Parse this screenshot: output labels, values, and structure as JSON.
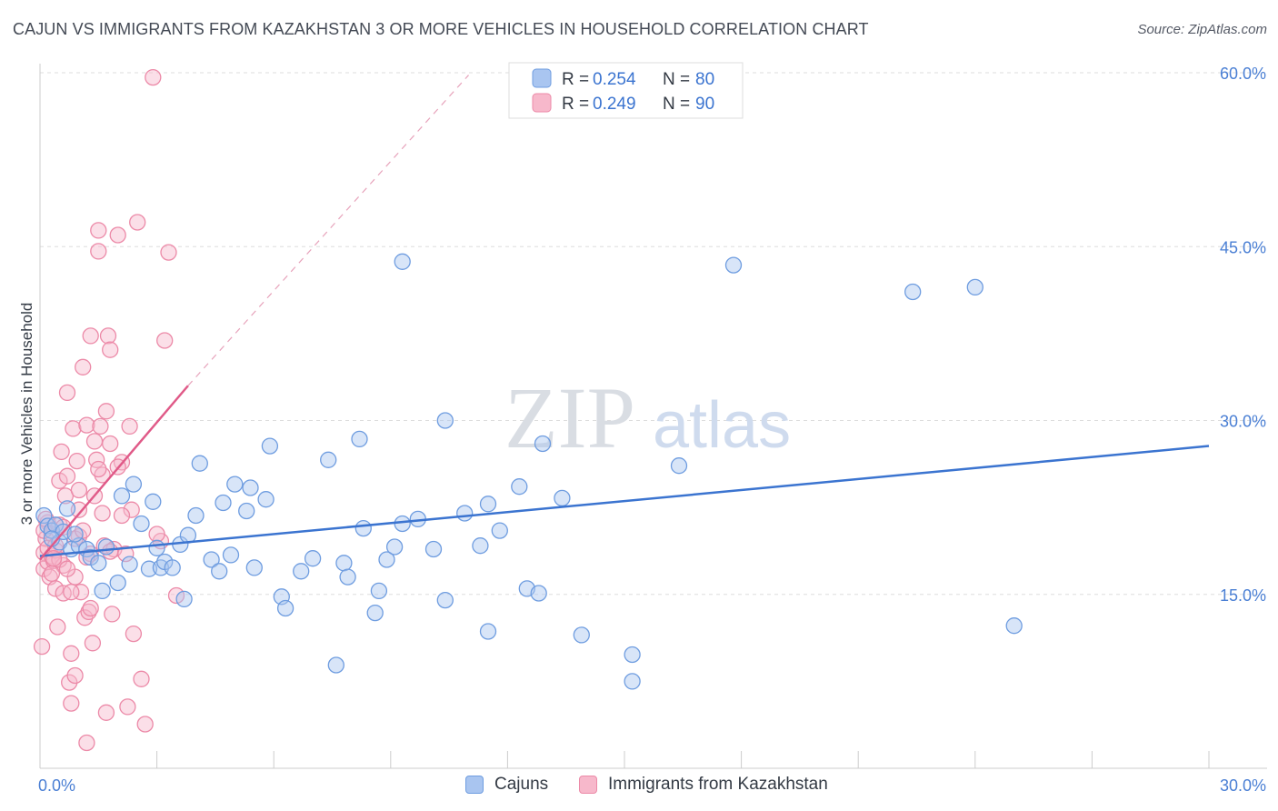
{
  "title": "CAJUN VS IMMIGRANTS FROM KAZAKHSTAN 3 OR MORE VEHICLES IN HOUSEHOLD CORRELATION CHART",
  "source": "Source: ZipAtlas.com",
  "watermark": {
    "zip": "ZIP",
    "atlas": "atlas"
  },
  "legend": {
    "r_label": "R =",
    "n_label": "N =",
    "cajun_r": "0.254",
    "cajun_n": "80",
    "kaz_r": "0.249",
    "kaz_n": "90"
  },
  "bottom_legend": {
    "cajun": "Cajuns",
    "kaz": "Immigrants from Kazakhstan"
  },
  "colors": {
    "cajun_fill": "#a9c5f0",
    "cajun_stroke": "#6f9de0",
    "cajun_line": "#3b74d0",
    "kaz_fill": "#f7b8cb",
    "kaz_stroke": "#ec8aa8",
    "kaz_line": "#e05a88",
    "tick": "#4a7fd4",
    "grid": "#dddddd"
  },
  "chart_data": {
    "type": "scatter",
    "title": "CAJUN VS IMMIGRANTS FROM KAZAKHSTAN 3 OR MORE VEHICLES IN HOUSEHOLD CORRELATION CHART",
    "xlabel": "",
    "ylabel": "3 or more Vehicles in Household",
    "xlim": [
      0,
      30
    ],
    "ylim": [
      0,
      60
    ],
    "x_tick_labels": [
      "0.0%",
      "30.0%"
    ],
    "y_ticks": [
      15,
      30,
      45,
      60
    ],
    "y_tick_labels": [
      "15.0%",
      "30.0%",
      "45.0%",
      "60.0%"
    ],
    "series": [
      {
        "name": "Cajuns",
        "r": 0.254,
        "n": 80,
        "trend": {
          "x0": 0,
          "y0": 18.3,
          "x1": 30,
          "y1": 27.8
        },
        "points": [
          [
            0.1,
            21.8
          ],
          [
            0.2,
            20.9
          ],
          [
            0.3,
            20.5
          ],
          [
            0.4,
            21.0
          ],
          [
            0.5,
            19.5
          ],
          [
            0.6,
            20.4
          ],
          [
            0.7,
            22.4
          ],
          [
            0.8,
            18.9
          ],
          [
            1.0,
            19.2
          ],
          [
            1.2,
            18.9
          ],
          [
            1.3,
            18.2
          ],
          [
            1.5,
            17.7
          ],
          [
            1.6,
            15.3
          ],
          [
            1.7,
            19.1
          ],
          [
            2.0,
            16.0
          ],
          [
            2.1,
            23.5
          ],
          [
            2.3,
            17.6
          ],
          [
            2.4,
            24.5
          ],
          [
            2.6,
            21.1
          ],
          [
            2.8,
            17.2
          ],
          [
            2.9,
            23.0
          ],
          [
            3.0,
            19.0
          ],
          [
            3.1,
            17.3
          ],
          [
            3.2,
            17.8
          ],
          [
            3.4,
            17.3
          ],
          [
            3.6,
            19.3
          ],
          [
            3.7,
            14.6
          ],
          [
            3.8,
            20.1
          ],
          [
            4.0,
            21.8
          ],
          [
            4.1,
            26.3
          ],
          [
            4.4,
            18.0
          ],
          [
            4.6,
            17.0
          ],
          [
            4.7,
            22.9
          ],
          [
            4.9,
            18.4
          ],
          [
            5.0,
            24.5
          ],
          [
            5.3,
            22.2
          ],
          [
            5.4,
            24.2
          ],
          [
            5.5,
            17.3
          ],
          [
            5.8,
            23.2
          ],
          [
            5.9,
            27.8
          ],
          [
            6.2,
            14.8
          ],
          [
            6.3,
            13.8
          ],
          [
            6.7,
            17.0
          ],
          [
            7.0,
            18.1
          ],
          [
            7.4,
            26.6
          ],
          [
            7.6,
            8.9
          ],
          [
            7.8,
            17.7
          ],
          [
            7.9,
            16.5
          ],
          [
            8.2,
            28.4
          ],
          [
            8.3,
            20.7
          ],
          [
            8.6,
            13.4
          ],
          [
            8.7,
            15.3
          ],
          [
            8.9,
            18.0
          ],
          [
            9.1,
            19.1
          ],
          [
            9.3,
            21.1
          ],
          [
            9.3,
            43.7
          ],
          [
            9.7,
            21.5
          ],
          [
            10.1,
            18.9
          ],
          [
            10.4,
            30.0
          ],
          [
            10.4,
            14.5
          ],
          [
            10.9,
            22.0
          ],
          [
            11.3,
            19.2
          ],
          [
            11.5,
            22.8
          ],
          [
            11.5,
            11.8
          ],
          [
            11.8,
            20.5
          ],
          [
            12.3,
            24.3
          ],
          [
            12.5,
            15.5
          ],
          [
            12.8,
            15.1
          ],
          [
            12.9,
            28.0
          ],
          [
            13.4,
            23.3
          ],
          [
            13.9,
            11.5
          ],
          [
            15.2,
            7.5
          ],
          [
            15.2,
            9.8
          ],
          [
            16.4,
            26.1
          ],
          [
            17.8,
            43.4
          ],
          [
            22.4,
            41.1
          ],
          [
            24.0,
            41.5
          ],
          [
            25.0,
            12.3
          ],
          [
            0.3,
            19.8
          ],
          [
            0.9,
            20.2
          ]
        ]
      },
      {
        "name": "Immigrants from Kazakhstan",
        "r": 0.249,
        "n": 90,
        "trend": {
          "x0": 0,
          "y0": 18.0,
          "x1": 3.8,
          "y1": 33.0
        },
        "dashed_extension": {
          "x0": 3.8,
          "y0": 33.0,
          "x1": 11.0,
          "y1": 59.8
        },
        "points": [
          [
            0.05,
            10.5
          ],
          [
            0.1,
            17.2
          ],
          [
            0.1,
            18.6
          ],
          [
            0.15,
            19.8
          ],
          [
            0.2,
            21.2
          ],
          [
            0.2,
            17.8
          ],
          [
            0.25,
            16.5
          ],
          [
            0.3,
            18.3
          ],
          [
            0.3,
            20.2
          ],
          [
            0.35,
            17.9
          ],
          [
            0.4,
            15.5
          ],
          [
            0.4,
            18.8
          ],
          [
            0.45,
            12.2
          ],
          [
            0.5,
            21.0
          ],
          [
            0.5,
            24.8
          ],
          [
            0.55,
            27.3
          ],
          [
            0.6,
            17.5
          ],
          [
            0.6,
            15.1
          ],
          [
            0.65,
            23.5
          ],
          [
            0.7,
            25.2
          ],
          [
            0.7,
            32.4
          ],
          [
            0.75,
            7.4
          ],
          [
            0.8,
            9.9
          ],
          [
            0.8,
            5.6
          ],
          [
            0.85,
            29.3
          ],
          [
            0.9,
            8.0
          ],
          [
            0.9,
            16.5
          ],
          [
            0.95,
            26.5
          ],
          [
            1.0,
            22.3
          ],
          [
            1.0,
            20.0
          ],
          [
            1.05,
            15.2
          ],
          [
            1.1,
            34.6
          ],
          [
            1.15,
            13.0
          ],
          [
            1.2,
            29.6
          ],
          [
            1.2,
            2.2
          ],
          [
            1.25,
            13.5
          ],
          [
            1.3,
            37.3
          ],
          [
            1.3,
            18.5
          ],
          [
            1.35,
            10.8
          ],
          [
            1.4,
            23.5
          ],
          [
            1.45,
            26.6
          ],
          [
            1.5,
            46.4
          ],
          [
            1.5,
            44.6
          ],
          [
            1.55,
            29.5
          ],
          [
            1.6,
            25.3
          ],
          [
            1.65,
            19.2
          ],
          [
            1.7,
            4.8
          ],
          [
            1.75,
            37.3
          ],
          [
            1.8,
            36.1
          ],
          [
            1.8,
            28.0
          ],
          [
            1.85,
            13.3
          ],
          [
            1.9,
            18.9
          ],
          [
            2.0,
            46.0
          ],
          [
            2.1,
            26.4
          ],
          [
            2.2,
            18.5
          ],
          [
            2.25,
            5.3
          ],
          [
            2.3,
            29.5
          ],
          [
            2.35,
            22.3
          ],
          [
            2.4,
            11.6
          ],
          [
            2.5,
            47.1
          ],
          [
            2.7,
            3.8
          ],
          [
            2.9,
            59.6
          ],
          [
            3.1,
            19.6
          ],
          [
            3.2,
            36.9
          ],
          [
            3.3,
            44.5
          ],
          [
            3.5,
            14.9
          ],
          [
            0.1,
            20.5
          ],
          [
            0.2,
            19.0
          ],
          [
            0.3,
            16.8
          ],
          [
            0.4,
            19.2
          ],
          [
            0.5,
            18.0
          ],
          [
            0.6,
            20.8
          ],
          [
            0.7,
            17.2
          ],
          [
            0.8,
            15.2
          ],
          [
            0.9,
            19.8
          ],
          [
            1.0,
            24.0
          ],
          [
            1.1,
            20.5
          ],
          [
            1.2,
            18.2
          ],
          [
            1.3,
            13.8
          ],
          [
            1.4,
            28.2
          ],
          [
            1.5,
            25.8
          ],
          [
            1.6,
            22.0
          ],
          [
            1.7,
            30.8
          ],
          [
            1.8,
            18.7
          ],
          [
            2.0,
            26.0
          ],
          [
            2.1,
            21.8
          ],
          [
            2.6,
            7.7
          ],
          [
            3.0,
            20.2
          ],
          [
            0.15,
            21.5
          ],
          [
            0.35,
            18.1
          ]
        ]
      }
    ]
  }
}
